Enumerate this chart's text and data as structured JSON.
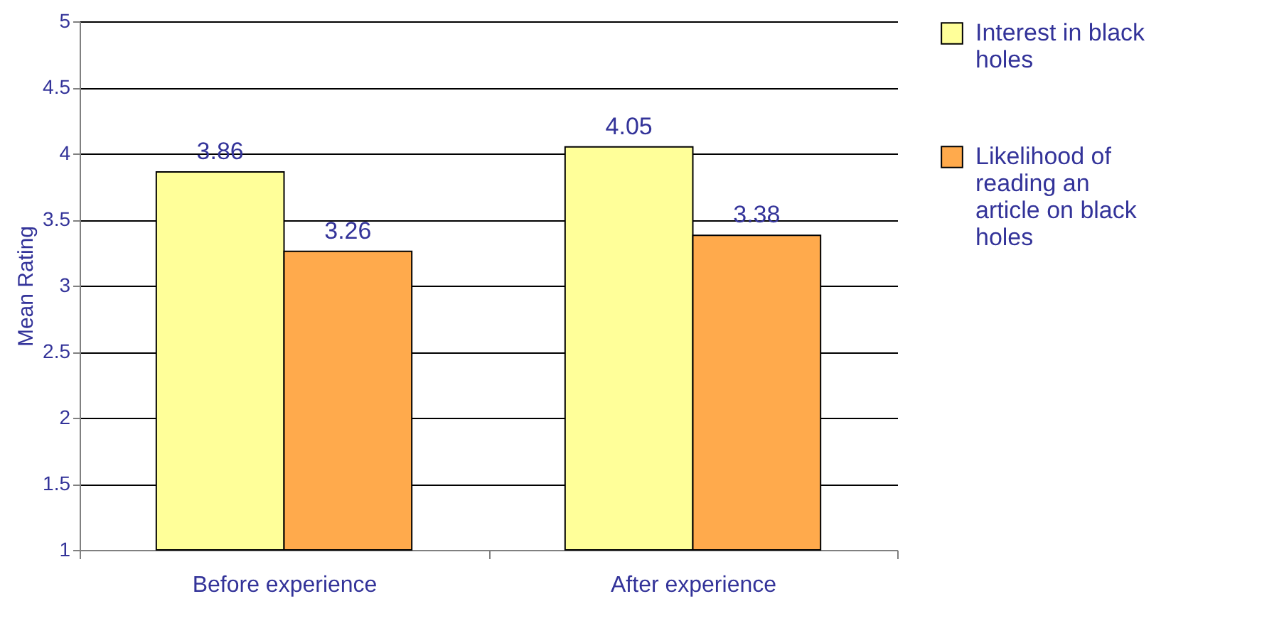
{
  "chart_data": {
    "type": "bar",
    "ylabel": "Mean Rating",
    "categories": [
      "Before experience",
      "After experience"
    ],
    "series": [
      {
        "name": "Interest in black holes",
        "color": "#ffff99",
        "values": [
          3.86,
          4.05
        ]
      },
      {
        "name": "Likelihood of reading an article on black holes",
        "color": "#ffaa4c",
        "values": [
          3.26,
          3.38
        ]
      }
    ],
    "ylim": [
      1,
      5
    ],
    "yticks": [
      1,
      1.5,
      2,
      2.5,
      3,
      3.5,
      4,
      4.5,
      5
    ],
    "grid": "y",
    "legend": "right",
    "data_labels": true
  }
}
